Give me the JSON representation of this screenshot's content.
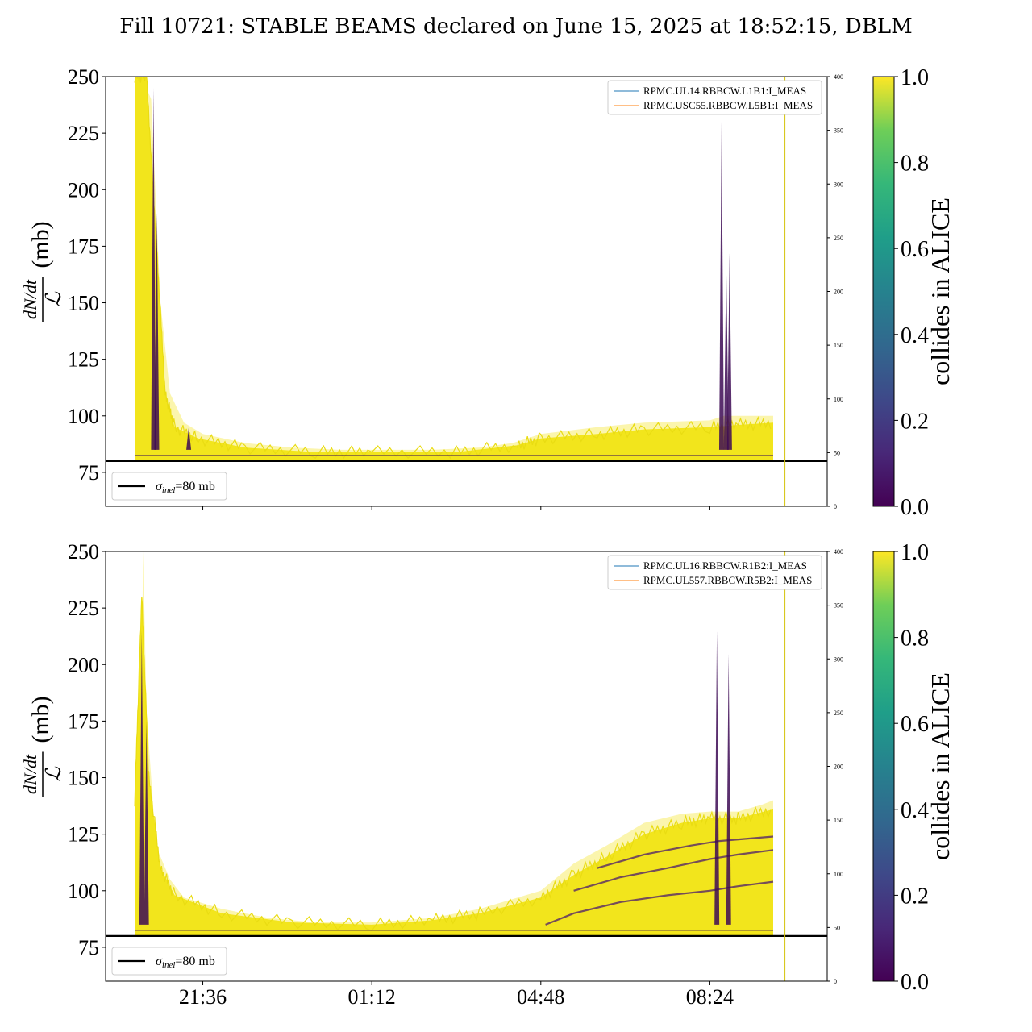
{
  "title": "Fill 10721: STABLE BEAMS declared on June 15, 2025 at 18:52:15, DBLM",
  "chart_data": [
    {
      "type": "line",
      "panel": "top",
      "ylabel_fraction_num": "dN/dt",
      "ylabel_fraction_den": "ℒ",
      "ylabel_unit": "(mb)",
      "ylim": [
        60,
        250
      ],
      "yticks": [
        75,
        100,
        125,
        150,
        175,
        200,
        225,
        250
      ],
      "y2lim": [
        0,
        400
      ],
      "y2ticks": [
        0,
        50,
        100,
        150,
        200,
        250,
        300,
        350,
        400
      ],
      "xticks": [
        "21:36",
        "01:12",
        "04:48",
        "08:24"
      ],
      "x_hours": [
        20.15,
        21.6,
        25.2,
        28.8,
        32.4,
        33.75,
        34.0
      ],
      "x_tick_hours": [
        21.6,
        25.2,
        28.8,
        32.4
      ],
      "legend_placement": "top-right",
      "legend": [
        "RPMC.UL14.RBBCW.L1B1:I_MEAS",
        "RPMC.USC55.RBBCW.L5B1:I_MEAS"
      ],
      "legend_colors": [
        "#1f77b4",
        "#ff7f0e"
      ],
      "reference_line": {
        "y": 80,
        "label_sym": "σ",
        "label_sub": "inel",
        "label_rest": "=80 mb"
      },
      "vertical_marker_hour": 34.0,
      "envelope_upper": [
        [
          20.15,
          250
        ],
        [
          20.3,
          250
        ],
        [
          20.5,
          240
        ],
        [
          20.7,
          150
        ],
        [
          20.9,
          110
        ],
        [
          21.2,
          97
        ],
        [
          21.6,
          92
        ],
        [
          22.5,
          88
        ],
        [
          23.5,
          86
        ],
        [
          24.5,
          85
        ],
        [
          25.2,
          85
        ],
        [
          26.5,
          85
        ],
        [
          27.5,
          86
        ],
        [
          28.2,
          88
        ],
        [
          28.8,
          92
        ],
        [
          30,
          95
        ],
        [
          31,
          97
        ],
        [
          32.4,
          98
        ],
        [
          32.7,
          100
        ],
        [
          33,
          100
        ],
        [
          33.5,
          100
        ],
        [
          33.75,
          100
        ]
      ],
      "envelope_lower": [
        [
          20.15,
          80
        ],
        [
          21,
          80
        ],
        [
          25,
          80
        ],
        [
          30,
          80
        ],
        [
          33.75,
          80
        ]
      ],
      "yellow_band_upper": [
        [
          20.15,
          250
        ],
        [
          20.4,
          250
        ],
        [
          20.6,
          180
        ],
        [
          20.8,
          110
        ],
        [
          21.0,
          95
        ],
        [
          21.5,
          90
        ],
        [
          22.5,
          86
        ],
        [
          24,
          84
        ],
        [
          25.2,
          84
        ],
        [
          27,
          84
        ],
        [
          28.3,
          87
        ],
        [
          28.8,
          90
        ],
        [
          30,
          92
        ],
        [
          31,
          94
        ],
        [
          32.4,
          95
        ],
        [
          33,
          96
        ],
        [
          33.75,
          97
        ]
      ],
      "purple_spikes": [
        {
          "x": 32.65,
          "y": 230
        },
        {
          "x": 32.75,
          "y": 168
        },
        {
          "x": 32.82,
          "y": 172
        },
        {
          "x": 20.55,
          "y": 245
        },
        {
          "x": 20.62,
          "y": 190
        },
        {
          "x": 21.3,
          "y": 95
        }
      ],
      "colorbar": {
        "label": "collides in ALICE",
        "ticks": [
          "0.0",
          "0.2",
          "0.4",
          "0.6",
          "0.8",
          "1.0"
        ],
        "colormap": "viridis"
      }
    },
    {
      "type": "line",
      "panel": "bottom",
      "ylabel_fraction_num": "dN/dt",
      "ylabel_fraction_den": "ℒ",
      "ylabel_unit": "(mb)",
      "ylim": [
        60,
        250
      ],
      "yticks": [
        75,
        100,
        125,
        150,
        175,
        200,
        225,
        250
      ],
      "y2lim": [
        0,
        400
      ],
      "y2ticks": [
        0,
        50,
        100,
        150,
        200,
        250,
        300,
        350,
        400
      ],
      "xticks": [
        "21:36",
        "01:12",
        "04:48",
        "08:24"
      ],
      "x_tick_hours": [
        21.6,
        25.2,
        28.8,
        32.4
      ],
      "legend_placement": "top-right",
      "legend": [
        "RPMC.UL16.RBBCW.R1B2:I_MEAS",
        "RPMC.UL557.RBBCW.R5B2:I_MEAS"
      ],
      "legend_colors": [
        "#1f77b4",
        "#ff7f0e"
      ],
      "reference_line": {
        "y": 80,
        "label_sym": "σ",
        "label_sub": "inel",
        "label_rest": "=80 mb"
      },
      "vertical_marker_hour": 34.0,
      "envelope_upper": [
        [
          20.15,
          150
        ],
        [
          20.3,
          200
        ],
        [
          20.33,
          250
        ],
        [
          20.4,
          180
        ],
        [
          20.6,
          120
        ],
        [
          20.9,
          105
        ],
        [
          21.2,
          97
        ],
        [
          22,
          92
        ],
        [
          23,
          88
        ],
        [
          24,
          86
        ],
        [
          25.2,
          86
        ],
        [
          26.5,
          88
        ],
        [
          27.5,
          92
        ],
        [
          28.8,
          100
        ],
        [
          29.5,
          112
        ],
        [
          30.2,
          120
        ],
        [
          31,
          130
        ],
        [
          31.8,
          134
        ],
        [
          32.4,
          135
        ],
        [
          33,
          135
        ],
        [
          33.5,
          138
        ],
        [
          33.75,
          140
        ]
      ],
      "envelope_lower": [
        [
          20.15,
          80
        ],
        [
          25,
          80
        ],
        [
          30,
          80
        ],
        [
          33.75,
          80
        ]
      ],
      "yellow_band_upper": [
        [
          20.15,
          140
        ],
        [
          20.3,
          230
        ],
        [
          20.45,
          150
        ],
        [
          20.7,
          110
        ],
        [
          21.0,
          98
        ],
        [
          22,
          90
        ],
        [
          23.5,
          86
        ],
        [
          25.2,
          85
        ],
        [
          26.5,
          87
        ],
        [
          27.5,
          90
        ],
        [
          28.8,
          97
        ],
        [
          29.5,
          107
        ],
        [
          30.2,
          115
        ],
        [
          31,
          125
        ],
        [
          31.8,
          130
        ],
        [
          32.4,
          132
        ],
        [
          33,
          132
        ],
        [
          33.75,
          136
        ]
      ],
      "purple_bands": [
        [
          [
            28.9,
            85
          ],
          [
            29.5,
            90
          ],
          [
            30.5,
            95
          ],
          [
            31.5,
            98
          ],
          [
            32.4,
            100
          ],
          [
            33,
            102
          ],
          [
            33.75,
            104
          ]
        ],
        [
          [
            29.5,
            100
          ],
          [
            30.5,
            106
          ],
          [
            31.5,
            110
          ],
          [
            32.4,
            114
          ],
          [
            33,
            116
          ],
          [
            33.75,
            118
          ]
        ],
        [
          [
            30,
            110
          ],
          [
            31,
            116
          ],
          [
            32,
            120
          ],
          [
            32.6,
            122
          ],
          [
            33.75,
            124
          ]
        ]
      ],
      "purple_spikes": [
        {
          "x": 20.3,
          "y": 215
        },
        {
          "x": 20.4,
          "y": 175
        },
        {
          "x": 32.55,
          "y": 215
        },
        {
          "x": 32.8,
          "y": 205
        }
      ],
      "colorbar": {
        "label": "collides in ALICE",
        "ticks": [
          "0.0",
          "0.2",
          "0.4",
          "0.6",
          "0.8",
          "1.0"
        ],
        "colormap": "viridis"
      }
    }
  ]
}
